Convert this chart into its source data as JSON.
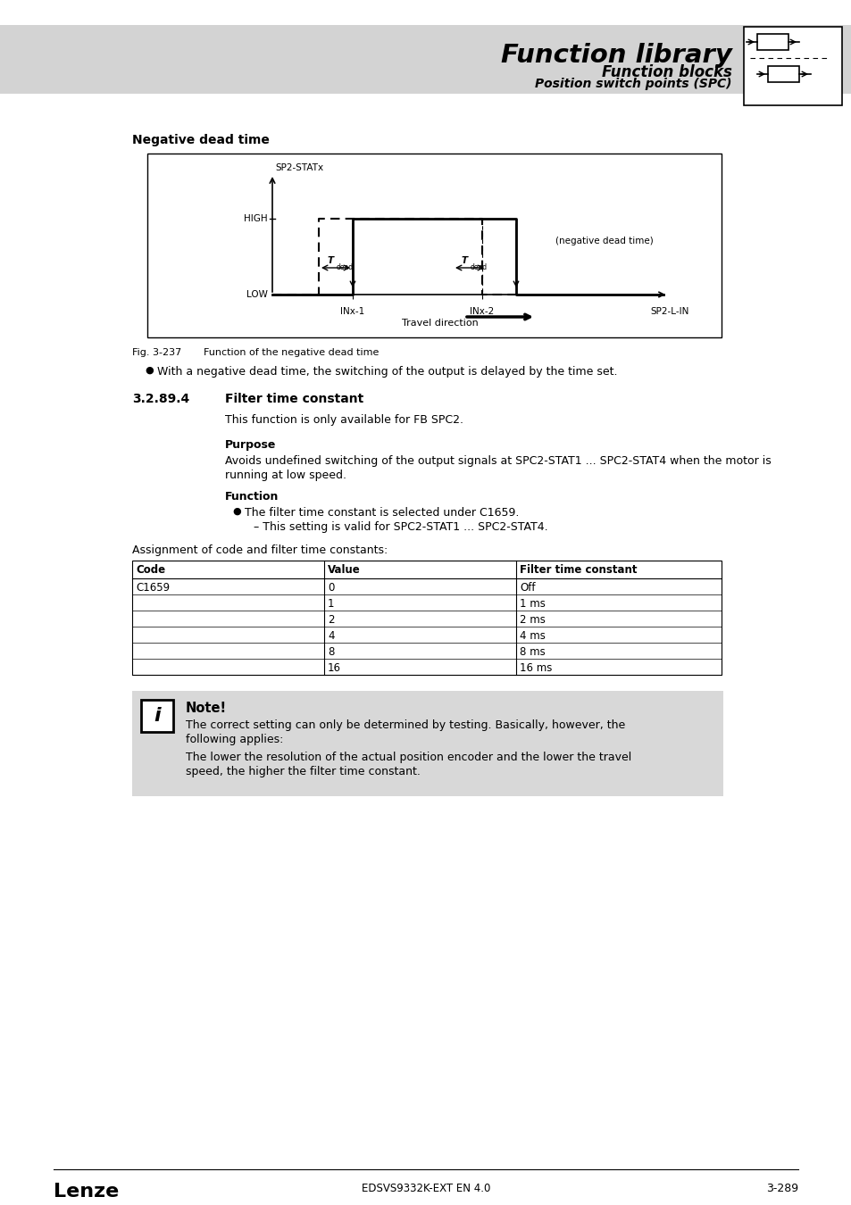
{
  "page_bg": "#ffffff",
  "header_bg": "#d3d3d3",
  "note_bg": "#d8d8d8",
  "header_title": "Function library",
  "header_sub1": "Function blocks",
  "header_sub2": "Position switch points (SPC)",
  "section_title": "Negative dead time",
  "fig_label": "Fig. 3-237",
  "fig_caption": "Function of the negative dead time",
  "bullet1": "With a negative dead time, the switching of the output is delayed by the time set.",
  "section_num": "3.2.89.4",
  "section_name": "Filter time constant",
  "para1": "This function is only available for FB SPC2.",
  "purpose_title": "Purpose",
  "purpose_line1": "Avoids undefined switching of the output signals at SPC2-STAT1 ... SPC2-STAT4 when the motor is",
  "purpose_line2": "running at low speed.",
  "function_title": "Function",
  "func_bullet1": "The filter time constant is selected under C1659.",
  "func_sub1": "– This setting is valid for SPC2-STAT1 ... SPC2-STAT4.",
  "assign_text": "Assignment of code and filter time constants:",
  "table_headers": [
    "Code",
    "Value",
    "Filter time constant"
  ],
  "table_col1": [
    "C1659",
    "",
    "",
    "",
    "",
    ""
  ],
  "table_col2": [
    "0",
    "1",
    "2",
    "4",
    "8",
    "16"
  ],
  "table_col3": [
    "Off",
    "1 ms",
    "2 ms",
    "4 ms",
    "8 ms",
    "16 ms"
  ],
  "note_title": "Note!",
  "note_text1a": "The correct setting can only be determined by testing. Basically, however, the",
  "note_text1b": "following applies:",
  "note_text2a": "The lower the resolution of the actual position encoder and the lower the travel",
  "note_text2b": "speed, the higher the filter time constant.",
  "footer_left": "Lenze",
  "footer_center": "EDSVS9332K-EXT EN 4.0",
  "footer_right": "3-289",
  "diagram_ylabel_top": "SP2-STATx",
  "diagram_ylabel_high": "HIGH",
  "diagram_ylabel_low": "LOW",
  "diagram_xlabel1": "INx-1",
  "diagram_xlabel2": "INx-2",
  "diagram_xlabel3": "SP2-L-IN",
  "diagram_travel": "Travel direction",
  "diagram_note": "(negative dead time)"
}
